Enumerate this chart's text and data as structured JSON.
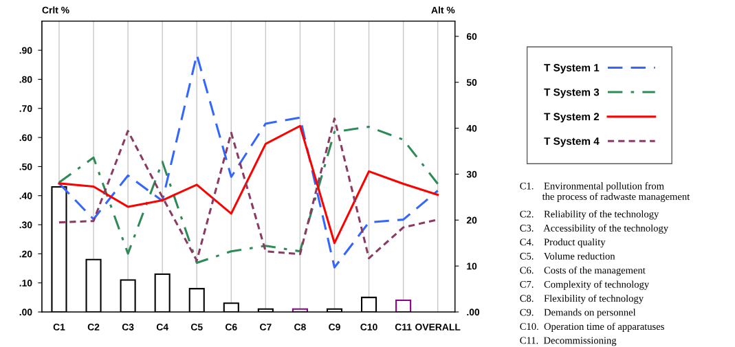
{
  "chart_data": {
    "type": "line",
    "ylabel": "Crlt %",
    "y2label": "Alt %",
    "categories": [
      "C1",
      "C2",
      "C3",
      "C4",
      "C5",
      "C6",
      "C7",
      "C8",
      "C9",
      "C10",
      "C11",
      "OVERALL"
    ],
    "ylim": [
      0,
      1.0
    ],
    "yticks": [
      {
        "value": 0,
        "label": ".00"
      },
      {
        "value": 0.1,
        "label": ".10"
      },
      {
        "value": 0.2,
        "label": ".20"
      },
      {
        "value": 0.3,
        "label": ".30"
      },
      {
        "value": 0.4,
        "label": ".40"
      },
      {
        "value": 0.5,
        "label": ".50"
      },
      {
        "value": 0.6,
        "label": ".60"
      },
      {
        "value": 0.7,
        "label": ".70"
      },
      {
        "value": 0.8,
        "label": ".80"
      },
      {
        "value": 0.9,
        "label": ".90"
      }
    ],
    "y2lim": [
      0,
      63.3
    ],
    "y2ticks": [
      {
        "value": 0,
        "label": ".00"
      },
      10,
      20,
      30,
      40,
      50,
      60
    ],
    "grid": "x",
    "legend": "right",
    "series": [
      {
        "type": "bar",
        "colors": [
          "#000000",
          "#000000",
          "#000000",
          "#000000",
          "#000000",
          "#000000",
          "#000000",
          "#8b008b",
          "#000000",
          "#000000",
          "#8b008b",
          "#000000"
        ],
        "values": [
          0.43,
          0.18,
          0.11,
          0.13,
          0.08,
          0.03,
          0.01,
          0.01,
          0.01,
          0.05,
          0.04,
          null
        ]
      },
      {
        "name": "T System 1",
        "color": "#3366ff",
        "line_style": "dashed",
        "axis": "y2",
        "values": [
          28,
          20.2,
          29.7,
          24.2,
          56,
          29.4,
          41,
          42.3,
          9.7,
          19.5,
          20.1,
          26.4
        ]
      },
      {
        "name": "T System 3",
        "color": "#2e8b57",
        "line_style": "dashdot",
        "axis": "y2",
        "values": [
          28.2,
          33.6,
          12.7,
          32.7,
          10.7,
          13.2,
          14.4,
          13.2,
          39.2,
          40.3,
          37.5,
          27.9
        ]
      },
      {
        "name": "T System 2",
        "color": "#ff0000",
        "line_style": "solid",
        "axis": "y2",
        "values": [
          28,
          27.3,
          22.9,
          24.3,
          27.7,
          21.4,
          36.6,
          40.5,
          15,
          30.6,
          27.9,
          25.5
        ]
      },
      {
        "name": "T System 4",
        "color": "#8b3a62",
        "line_style": "dotted",
        "axis": "y2",
        "values": [
          19.5,
          19.8,
          39.4,
          25,
          11.2,
          39,
          13.2,
          12.6,
          42.1,
          11.7,
          18.4,
          20.1
        ]
      }
    ],
    "annotations": [
      "C1.    Environmental pollution from\n         the process of radwaste management",
      "C2.    Reliability of the technology",
      "C3.    Accessibility of the technology",
      "C4.    Product quality",
      "C5.    Volume reduction",
      "C6.    Costs of the management",
      "C7.    Complexity of technology",
      "C8.    Flexibility of technology",
      "C9.    Demands on personnel",
      "C10.  Operation time of apparatuses",
      "C11.  Decommissioning"
    ]
  }
}
